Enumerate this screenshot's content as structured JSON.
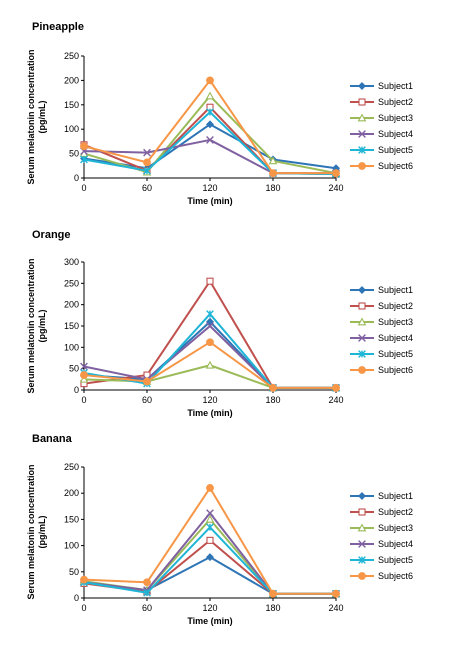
{
  "chart_data": [
    {
      "type": "line",
      "title": "Pineapple",
      "xlabel": "Time (min)",
      "ylabel": "Serum melatonin concentration (pg/mL)",
      "x": [
        0,
        60,
        120,
        180,
        240
      ],
      "xlim": [
        0,
        240
      ],
      "ylim": [
        0,
        250
      ],
      "yticks": [
        0,
        50,
        100,
        150,
        200,
        250
      ],
      "grid": false,
      "legend_position": "right",
      "series": [
        {
          "name": "Subject1",
          "values": [
            40,
            20,
            110,
            38,
            20
          ],
          "color": "#2e75b6",
          "marker": "diamond"
        },
        {
          "name": "Subject2",
          "values": [
            68,
            15,
            145,
            10,
            8
          ],
          "color": "#c0504d",
          "marker": "square"
        },
        {
          "name": "Subject3",
          "values": [
            50,
            12,
            168,
            35,
            10
          ],
          "color": "#9bbb59",
          "marker": "triangle"
        },
        {
          "name": "Subject4",
          "values": [
            55,
            52,
            78,
            10,
            10
          ],
          "color": "#7f60a0",
          "marker": "x"
        },
        {
          "name": "Subject5",
          "values": [
            38,
            15,
            135,
            10,
            8
          ],
          "color": "#1fb5d6",
          "marker": "star"
        },
        {
          "name": "Subject6",
          "values": [
            65,
            32,
            200,
            10,
            10
          ],
          "color": "#f79646",
          "marker": "circle"
        }
      ]
    },
    {
      "type": "line",
      "title": "Orange",
      "xlabel": "Time (min)",
      "ylabel": "Serum melatonin concentration (pg/mL)",
      "x": [
        0,
        60,
        120,
        180,
        240
      ],
      "xlim": [
        0,
        240
      ],
      "ylim": [
        0,
        300
      ],
      "yticks": [
        0,
        50,
        100,
        150,
        200,
        250,
        300
      ],
      "grid": false,
      "legend_position": "right",
      "series": [
        {
          "name": "Subject1",
          "values": [
            35,
            25,
            160,
            5,
            5
          ],
          "color": "#2e75b6",
          "marker": "diamond"
        },
        {
          "name": "Subject2",
          "values": [
            15,
            35,
            255,
            5,
            5
          ],
          "color": "#c0504d",
          "marker": "square"
        },
        {
          "name": "Subject3",
          "values": [
            25,
            20,
            58,
            5,
            5
          ],
          "color": "#9bbb59",
          "marker": "triangle"
        },
        {
          "name": "Subject4",
          "values": [
            55,
            25,
            150,
            5,
            5
          ],
          "color": "#7f60a0",
          "marker": "x"
        },
        {
          "name": "Subject5",
          "values": [
            40,
            15,
            178,
            5,
            5
          ],
          "color": "#1fb5d6",
          "marker": "star"
        },
        {
          "name": "Subject6",
          "values": [
            35,
            20,
            112,
            5,
            5
          ],
          "color": "#f79646",
          "marker": "circle"
        }
      ]
    },
    {
      "type": "line",
      "title": "Banana",
      "xlabel": "Time (min)",
      "ylabel": "Serum melatonin concentration (pg/mL)",
      "x": [
        0,
        60,
        120,
        180,
        240
      ],
      "xlim": [
        0,
        240
      ],
      "ylim": [
        0,
        250
      ],
      "yticks": [
        0,
        50,
        100,
        150,
        200,
        250
      ],
      "grid": false,
      "legend_position": "right",
      "series": [
        {
          "name": "Subject1",
          "values": [
            30,
            15,
            78,
            8,
            8
          ],
          "color": "#2e75b6",
          "marker": "diamond"
        },
        {
          "name": "Subject2",
          "values": [
            28,
            12,
            110,
            8,
            8
          ],
          "color": "#c0504d",
          "marker": "square"
        },
        {
          "name": "Subject3",
          "values": [
            32,
            15,
            150,
            8,
            8
          ],
          "color": "#9bbb59",
          "marker": "triangle"
        },
        {
          "name": "Subject4",
          "values": [
            30,
            15,
            162,
            8,
            8
          ],
          "color": "#7f60a0",
          "marker": "x"
        },
        {
          "name": "Subject5",
          "values": [
            30,
            10,
            135,
            8,
            8
          ],
          "color": "#1fb5d6",
          "marker": "star"
        },
        {
          "name": "Subject6",
          "values": [
            35,
            30,
            210,
            8,
            8
          ],
          "color": "#f79646",
          "marker": "circle"
        }
      ]
    }
  ]
}
